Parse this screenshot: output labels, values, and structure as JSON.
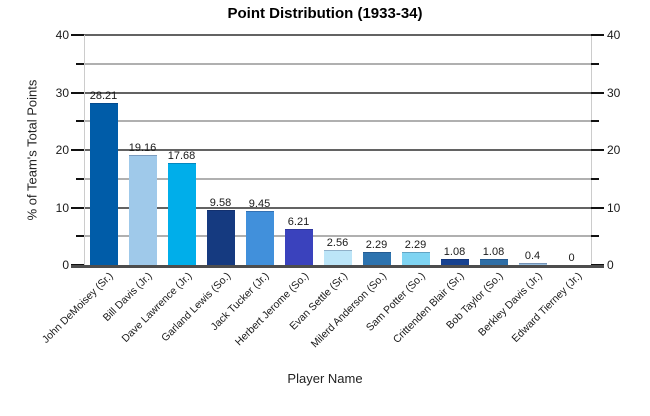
{
  "title": "Point Distribution (1933-34)",
  "chart_data": {
    "type": "bar",
    "title": "Point Distribution (1933-34)",
    "xlabel": "Player Name",
    "ylabel": "% of Team's Total Points",
    "ylim": [
      0,
      40
    ],
    "ytick_major": [
      0,
      10,
      20,
      30,
      40
    ],
    "ytick_minor": [
      5,
      15,
      25,
      35
    ],
    "grid": "horizontal, major dark + minor light, y-axis labels on both sides",
    "legend": "none",
    "categories": [
      "John DeMoisey (Sr.)",
      "Bill Davis (Jr.)",
      "Dave Lawrence (Jr.)",
      "Garland Lewis (So.)",
      "Jack Tucker (Jr.)",
      "Herbert Jerome (So.)",
      "Evan Settle (Sr.)",
      "Milerd Anderson (So.)",
      "Sam Potter (So.)",
      "Crittenden Blair (Sr.)",
      "Bob Taylor (So.)",
      "Berkley Davis (Jr.)",
      "Edward Tierney (Jr.)"
    ],
    "values": [
      28.21,
      19.16,
      17.68,
      9.58,
      9.45,
      6.21,
      2.56,
      2.29,
      2.29,
      1.08,
      1.08,
      0.4,
      0
    ],
    "value_labels": [
      "28.21",
      "19.16",
      "17.68",
      "9.58",
      "9.45",
      "6.21",
      "2.56",
      "2.29",
      "2.29",
      "1.08",
      "1.08",
      "0.4",
      "0"
    ],
    "bar_colors": [
      "#005ca8",
      "#9fc9ea",
      "#00aeea",
      "#153a80",
      "#4190db",
      "#3a42bd",
      "#bce5f8",
      "#2d73af",
      "#7fd4f2",
      "#164190",
      "#2f6fa7",
      "#97bddf",
      "#005ca8"
    ]
  },
  "colors": {
    "background": "#ffffff",
    "grid_major": "#636363",
    "grid_minor": "#b0b0b0",
    "axis_line": "#4d4d4d",
    "plot_edge": "#cccccc",
    "tick": "#111111",
    "text": "#1a1a1a"
  }
}
